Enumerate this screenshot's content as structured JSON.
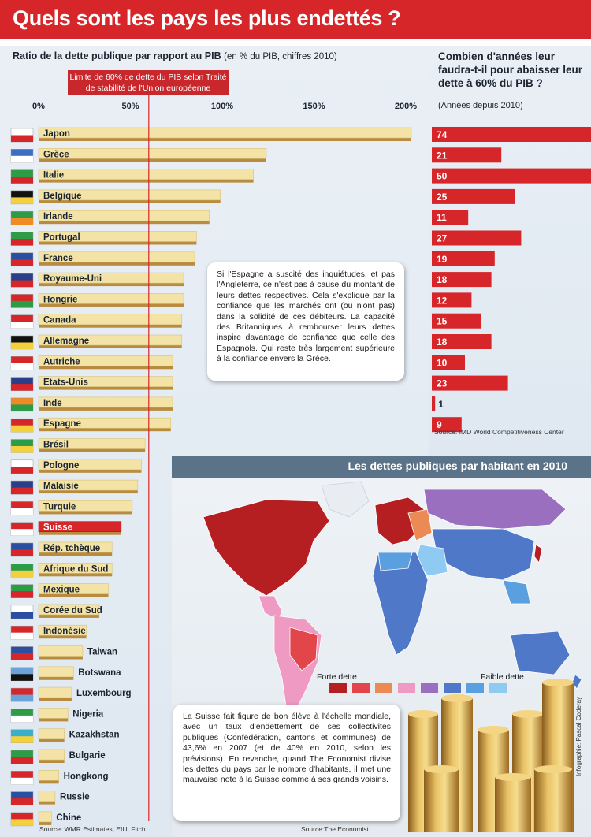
{
  "title": "Quels sont les pays les plus endettés ?",
  "chart_data": [
    {
      "type": "bar",
      "title": "Ratio de la dette publique par rapport au PIB",
      "subtitle": "(en % du PIB, chiffres 2010)",
      "reference_label": "Limite de 60% de dette du PIB selon Traité de stabilité de l'Union européenne",
      "reference_value": 60,
      "xlim": [
        0,
        220
      ],
      "ticks": [
        "0%",
        "50%",
        "100%",
        "150%",
        "200%"
      ],
      "tick_values": [
        0,
        50,
        100,
        150,
        200
      ],
      "categories": [
        "Japon",
        "Grèce",
        "Italie",
        "Belgique",
        "Irlande",
        "Portugal",
        "France",
        "Royaume-Uni",
        "Hongrie",
        "Canada",
        "Allemagne",
        "Autriche",
        "Etats-Unis",
        "Inde",
        "Espagne",
        "Brésil",
        "Pologne",
        "Malaisie",
        "Turquie",
        "Suisse",
        "Rép. tchèque",
        "Afrique du Sud",
        "Mexique",
        "Corée du Sud",
        "Indonésie",
        "Taiwan",
        "Botswana",
        "Luxembourg",
        "Nigeria",
        "Kazakhstan",
        "Bulgarie",
        "Hongkong",
        "Russie",
        "Chine"
      ],
      "values": [
        203,
        124,
        117,
        99,
        93,
        86,
        85,
        79,
        79,
        78,
        78,
        73,
        73,
        73,
        72,
        58,
        56,
        54,
        51,
        45,
        40,
        40,
        38,
        33,
        26,
        24,
        19,
        18,
        16,
        14,
        14,
        11,
        9,
        7
      ],
      "highlight": "Suisse",
      "source": "Source: WMR Estimates, EIU, Fitch"
    },
    {
      "type": "bar",
      "title": "Combien d'années leur faudra-t-il pour abaisser leur dette à 60% du PIB ?",
      "subtitle": "(Années depuis 2010)",
      "categories": [
        "Japon",
        "Grèce",
        "Italie",
        "Belgique",
        "Irlande",
        "Portugal",
        "France",
        "Royaume-Uni",
        "Hongrie",
        "Canada",
        "Allemagne",
        "Autriche",
        "Etats-Unis",
        "Inde",
        "Espagne"
      ],
      "values": [
        74,
        21,
        50,
        25,
        11,
        27,
        19,
        18,
        12,
        15,
        18,
        10,
        23,
        1,
        9
      ],
      "source": "Source: IMD World Competitiveness Center"
    }
  ],
  "callout_spain": "Si l'Espagne a suscité des inquiétudes, et pas l'Angleterre, ce n'est pas à cause du montant de leurs dettes respectives. Cela s'explique par la confiance que les marchés ont (ou n'ont pas) dans la solidité de ces débiteurs. La capacité des Britanniques à rembourser leurs dettes inspire davantage de confiance que celle des Espagnols. Qui reste très largement supérieure à la confiance envers la Grèce.",
  "map": {
    "title": "Les dettes publiques par habitant en 2010",
    "legend_strong": "Forte dette",
    "legend_weak": "Faible dette",
    "legend_colors": [
      "#b51f22",
      "#e2464b",
      "#ec8a55",
      "#ef9ac2",
      "#9a6fc0",
      "#4f78c8",
      "#5aa0e0",
      "#8fcaf2"
    ],
    "source": "Source:The Economist"
  },
  "callout_swiss": "La Suisse fait figure de bon élève à l'échelle mondiale, avec un taux d'endettement de ses collectivités publiques (Confédération, cantons et communes) de 43,6% en 2007 (et de 40% en 2010, selon les prévisions). En revanche, quand The Economist divise les dettes du pays par le nombre d'habitants, il met une mauvaise note à la Suisse comme à ses grands voisins.",
  "credit": "Infographie: Pascal Coderay",
  "colors": {
    "accent": "#d6262a",
    "bar": "#f3e3a6",
    "bar_shadow": "#b88b3f",
    "highlight": "#d6262a"
  }
}
